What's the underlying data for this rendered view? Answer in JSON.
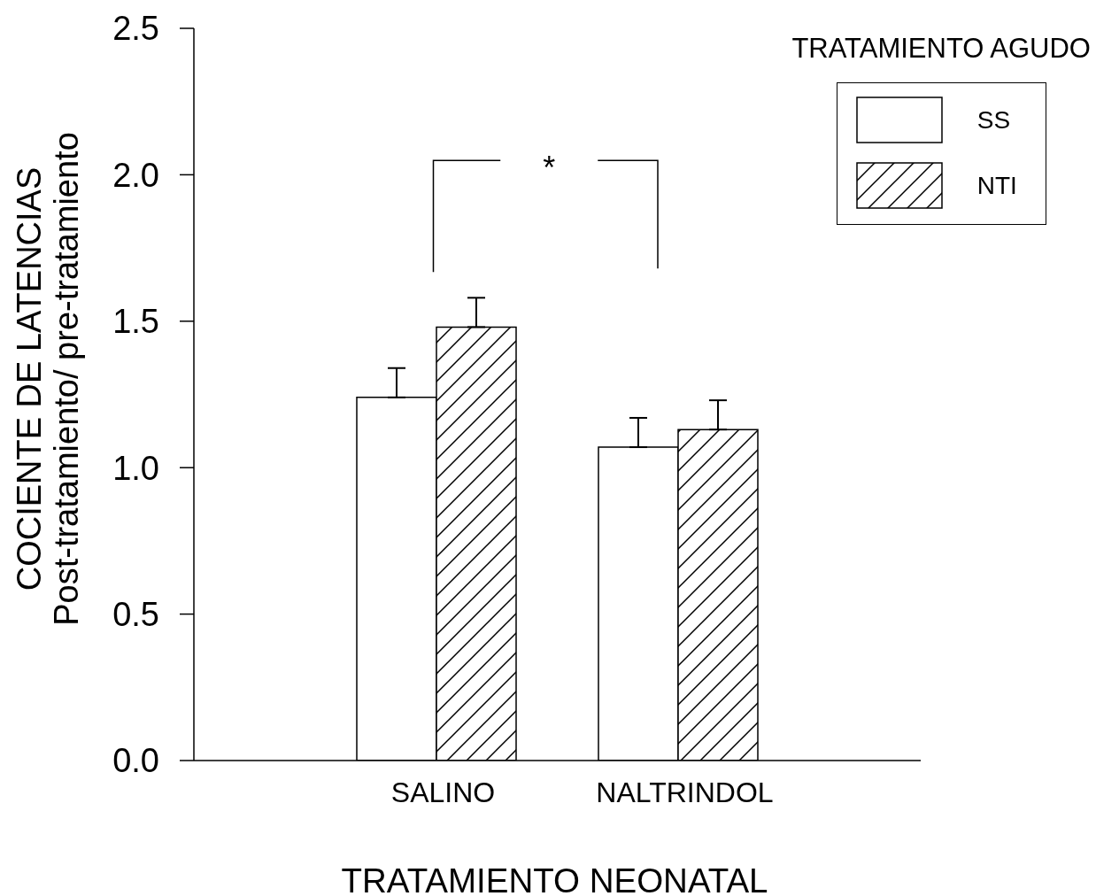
{
  "chart_data": {
    "type": "bar",
    "xlabel": "TRATAMIENTO NEONATAL",
    "ylabel": "COCIENTE DE LATENCIAS\nPost-tratamiento/ pre-tratamiento",
    "legend_title": "TRATAMIENTO AGUDO",
    "legend": "top right",
    "annotations": [
      "*"
    ],
    "categories": [
      "SALINO",
      "NALTRINDOL"
    ],
    "series": [
      {
        "name": "SS",
        "color": "#ffffff",
        "values": [
          1.24,
          1.07
        ],
        "errors": [
          [
            1.24,
            1.34
          ],
          [
            1.07,
            1.17
          ]
        ]
      },
      {
        "name": "NTI",
        "color": "#000000",
        "values": [
          1.48,
          1.13
        ],
        "errors": [
          [
            1.48,
            1.58
          ],
          [
            1.13,
            1.23
          ]
        ]
      }
    ],
    "ylim": [
      0,
      2.5
    ],
    "yticks": [
      {
        "value": 0,
        "label": "0.0"
      },
      0.5,
      {
        "value": 1,
        "label": "1.0"
      },
      1.5,
      {
        "value": 2,
        "label": "2.0"
      },
      2.5
    ]
  }
}
